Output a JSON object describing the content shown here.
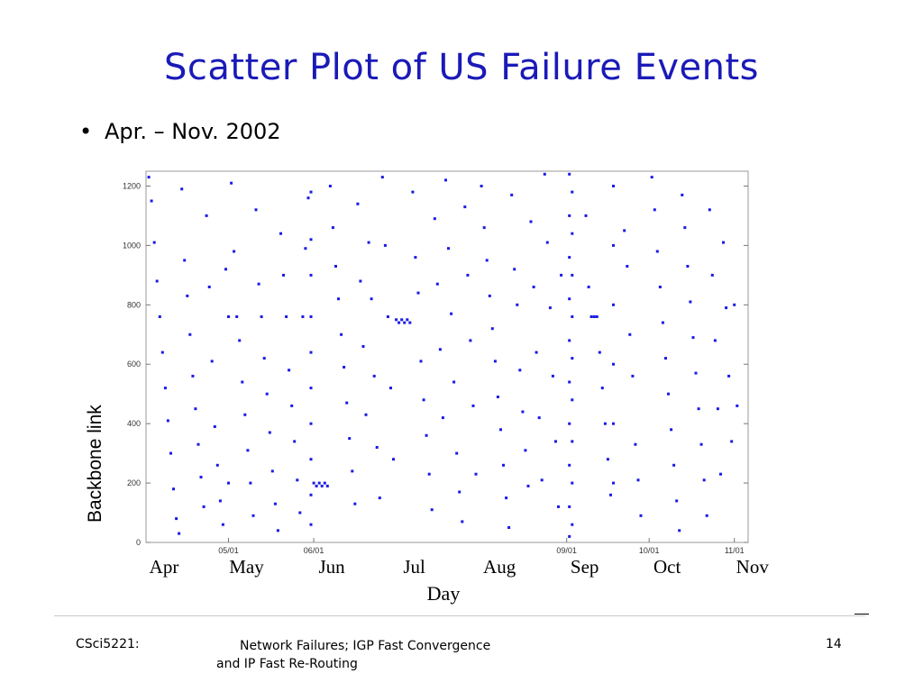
{
  "slide": {
    "title": "Scatter Plot of US Failure Events",
    "bullet_symbol": "•",
    "bullet_text": "Apr. – Nov. 2002"
  },
  "footer": {
    "left": "CSci5221:",
    "center_line1": "Network Failures; IGP Fast Convergence",
    "center_line2": "and IP Fast Re-Routing",
    "page_number": "14"
  },
  "chart_data": {
    "type": "scatter",
    "title": "",
    "xlabel": "Day",
    "ylabel": "Backbone link",
    "ylim": [
      0,
      1250
    ],
    "yticks": [
      0,
      200,
      400,
      600,
      800,
      1000,
      1200
    ],
    "ytick_labels": [
      "0",
      "200",
      "400",
      "600",
      "800",
      "1000",
      "1200"
    ],
    "xlim": [
      "2002-04-01",
      "2002-11-06"
    ],
    "date_ticks": [
      {
        "date": "2002-05-01",
        "label": "05/01"
      },
      {
        "date": "2002-06-01",
        "label": "06/01"
      },
      {
        "date": "2002-09-01",
        "label": "09/01"
      },
      {
        "date": "2002-10-01",
        "label": "10/01"
      },
      {
        "date": "2002-11-01",
        "label": "11/01"
      }
    ],
    "month_labels": [
      "Apr",
      "May",
      "Jun",
      "Jul",
      "Aug",
      "Sep",
      "Oct",
      "Nov"
    ],
    "point_color": "#1a1ae6",
    "grid": false,
    "legend": "none",
    "series": [
      {
        "points": [
          [
            "2002-04-02",
            1230
          ],
          [
            "2002-04-03",
            1150
          ],
          [
            "2002-04-04",
            1010
          ],
          [
            "2002-04-05",
            880
          ],
          [
            "2002-04-06",
            760
          ],
          [
            "2002-04-07",
            640
          ],
          [
            "2002-04-08",
            520
          ],
          [
            "2002-04-09",
            410
          ],
          [
            "2002-04-10",
            300
          ],
          [
            "2002-04-11",
            180
          ],
          [
            "2002-04-12",
            80
          ],
          [
            "2002-04-13",
            30
          ],
          [
            "2002-04-14",
            1190
          ],
          [
            "2002-04-15",
            950
          ],
          [
            "2002-04-16",
            830
          ],
          [
            "2002-04-17",
            700
          ],
          [
            "2002-04-18",
            560
          ],
          [
            "2002-04-19",
            450
          ],
          [
            "2002-04-20",
            330
          ],
          [
            "2002-04-21",
            220
          ],
          [
            "2002-04-22",
            120
          ],
          [
            "2002-04-23",
            1100
          ],
          [
            "2002-04-24",
            860
          ],
          [
            "2002-04-25",
            610
          ],
          [
            "2002-04-26",
            390
          ],
          [
            "2002-04-27",
            260
          ],
          [
            "2002-04-28",
            140
          ],
          [
            "2002-04-29",
            60
          ],
          [
            "2002-04-30",
            920
          ],
          [
            "2002-05-01",
            760
          ],
          [
            "2002-05-01",
            200
          ],
          [
            "2002-05-02",
            1210
          ],
          [
            "2002-05-03",
            980
          ],
          [
            "2002-05-04",
            760
          ],
          [
            "2002-05-05",
            680
          ],
          [
            "2002-05-06",
            540
          ],
          [
            "2002-05-07",
            430
          ],
          [
            "2002-05-08",
            310
          ],
          [
            "2002-05-09",
            200
          ],
          [
            "2002-05-10",
            90
          ],
          [
            "2002-05-11",
            1120
          ],
          [
            "2002-05-12",
            870
          ],
          [
            "2002-05-13",
            760
          ],
          [
            "2002-05-14",
            620
          ],
          [
            "2002-05-15",
            500
          ],
          [
            "2002-05-16",
            370
          ],
          [
            "2002-05-17",
            240
          ],
          [
            "2002-05-18",
            130
          ],
          [
            "2002-05-19",
            40
          ],
          [
            "2002-05-20",
            1040
          ],
          [
            "2002-05-21",
            900
          ],
          [
            "2002-05-22",
            760
          ],
          [
            "2002-05-23",
            580
          ],
          [
            "2002-05-24",
            460
          ],
          [
            "2002-05-25",
            340
          ],
          [
            "2002-05-26",
            210
          ],
          [
            "2002-05-27",
            100
          ],
          [
            "2002-05-28",
            760
          ],
          [
            "2002-05-29",
            990
          ],
          [
            "2002-05-30",
            1160
          ],
          [
            "2002-05-31",
            1180
          ],
          [
            "2002-05-31",
            1020
          ],
          [
            "2002-05-31",
            900
          ],
          [
            "2002-05-31",
            760
          ],
          [
            "2002-05-31",
            640
          ],
          [
            "2002-05-31",
            520
          ],
          [
            "2002-05-31",
            400
          ],
          [
            "2002-05-31",
            280
          ],
          [
            "2002-05-31",
            160
          ],
          [
            "2002-05-31",
            60
          ],
          [
            "2002-06-01",
            200
          ],
          [
            "2002-06-02",
            190
          ],
          [
            "2002-06-03",
            200
          ],
          [
            "2002-06-04",
            190
          ],
          [
            "2002-06-05",
            200
          ],
          [
            "2002-06-06",
            190
          ],
          [
            "2002-06-07",
            1200
          ],
          [
            "2002-06-08",
            1060
          ],
          [
            "2002-06-09",
            930
          ],
          [
            "2002-06-10",
            820
          ],
          [
            "2002-06-11",
            700
          ],
          [
            "2002-06-12",
            590
          ],
          [
            "2002-06-13",
            470
          ],
          [
            "2002-06-14",
            350
          ],
          [
            "2002-06-15",
            240
          ],
          [
            "2002-06-16",
            130
          ],
          [
            "2002-06-17",
            1140
          ],
          [
            "2002-06-18",
            880
          ],
          [
            "2002-06-19",
            660
          ],
          [
            "2002-06-20",
            430
          ],
          [
            "2002-06-21",
            1010
          ],
          [
            "2002-06-22",
            820
          ],
          [
            "2002-06-23",
            560
          ],
          [
            "2002-06-24",
            320
          ],
          [
            "2002-06-25",
            150
          ],
          [
            "2002-06-26",
            1230
          ],
          [
            "2002-06-27",
            1000
          ],
          [
            "2002-06-28",
            760
          ],
          [
            "2002-06-29",
            520
          ],
          [
            "2002-06-30",
            280
          ],
          [
            "2002-07-01",
            750
          ],
          [
            "2002-07-02",
            740
          ],
          [
            "2002-07-03",
            750
          ],
          [
            "2002-07-04",
            740
          ],
          [
            "2002-07-05",
            750
          ],
          [
            "2002-07-06",
            740
          ],
          [
            "2002-07-07",
            1180
          ],
          [
            "2002-07-08",
            960
          ],
          [
            "2002-07-09",
            840
          ],
          [
            "2002-07-10",
            610
          ],
          [
            "2002-07-11",
            480
          ],
          [
            "2002-07-12",
            360
          ],
          [
            "2002-07-13",
            230
          ],
          [
            "2002-07-14",
            110
          ],
          [
            "2002-07-15",
            1090
          ],
          [
            "2002-07-16",
            870
          ],
          [
            "2002-07-17",
            650
          ],
          [
            "2002-07-18",
            420
          ],
          [
            "2002-07-19",
            1220
          ],
          [
            "2002-07-20",
            990
          ],
          [
            "2002-07-21",
            770
          ],
          [
            "2002-07-22",
            540
          ],
          [
            "2002-07-23",
            300
          ],
          [
            "2002-07-24",
            170
          ],
          [
            "2002-07-25",
            70
          ],
          [
            "2002-07-26",
            1130
          ],
          [
            "2002-07-27",
            900
          ],
          [
            "2002-07-28",
            680
          ],
          [
            "2002-07-29",
            460
          ],
          [
            "2002-07-30",
            230
          ],
          [
            "2002-08-01",
            1200
          ],
          [
            "2002-08-02",
            1060
          ],
          [
            "2002-08-03",
            950
          ],
          [
            "2002-08-04",
            830
          ],
          [
            "2002-08-05",
            720
          ],
          [
            "2002-08-06",
            610
          ],
          [
            "2002-08-07",
            490
          ],
          [
            "2002-08-08",
            380
          ],
          [
            "2002-08-09",
            260
          ],
          [
            "2002-08-10",
            150
          ],
          [
            "2002-08-11",
            50
          ],
          [
            "2002-08-12",
            1170
          ],
          [
            "2002-08-13",
            920
          ],
          [
            "2002-08-14",
            800
          ],
          [
            "2002-08-15",
            580
          ],
          [
            "2002-08-16",
            440
          ],
          [
            "2002-08-17",
            310
          ],
          [
            "2002-08-18",
            190
          ],
          [
            "2002-08-19",
            1080
          ],
          [
            "2002-08-20",
            860
          ],
          [
            "2002-08-21",
            640
          ],
          [
            "2002-08-22",
            420
          ],
          [
            "2002-08-23",
            210
          ],
          [
            "2002-08-24",
            1240
          ],
          [
            "2002-08-25",
            1010
          ],
          [
            "2002-08-26",
            790
          ],
          [
            "2002-08-27",
            560
          ],
          [
            "2002-08-28",
            340
          ],
          [
            "2002-08-29",
            120
          ],
          [
            "2002-08-30",
            900
          ],
          [
            "2002-09-02",
            1240
          ],
          [
            "2002-09-02",
            1100
          ],
          [
            "2002-09-02",
            960
          ],
          [
            "2002-09-02",
            820
          ],
          [
            "2002-09-02",
            680
          ],
          [
            "2002-09-02",
            540
          ],
          [
            "2002-09-02",
            400
          ],
          [
            "2002-09-02",
            260
          ],
          [
            "2002-09-02",
            120
          ],
          [
            "2002-09-02",
            20
          ],
          [
            "2002-09-03",
            1180
          ],
          [
            "2002-09-03",
            1040
          ],
          [
            "2002-09-03",
            900
          ],
          [
            "2002-09-03",
            760
          ],
          [
            "2002-09-03",
            620
          ],
          [
            "2002-09-03",
            480
          ],
          [
            "2002-09-03",
            340
          ],
          [
            "2002-09-03",
            200
          ],
          [
            "2002-09-03",
            60
          ],
          [
            "2002-09-08",
            1100
          ],
          [
            "2002-09-09",
            860
          ],
          [
            "2002-09-10",
            760
          ],
          [
            "2002-09-11",
            760
          ],
          [
            "2002-09-12",
            760
          ],
          [
            "2002-09-13",
            640
          ],
          [
            "2002-09-14",
            520
          ],
          [
            "2002-09-15",
            400
          ],
          [
            "2002-09-16",
            280
          ],
          [
            "2002-09-17",
            160
          ],
          [
            "2002-09-18",
            1200
          ],
          [
            "2002-09-18",
            1000
          ],
          [
            "2002-09-18",
            800
          ],
          [
            "2002-09-18",
            600
          ],
          [
            "2002-09-18",
            400
          ],
          [
            "2002-09-18",
            200
          ],
          [
            "2002-09-22",
            1050
          ],
          [
            "2002-09-23",
            930
          ],
          [
            "2002-09-24",
            700
          ],
          [
            "2002-09-25",
            560
          ],
          [
            "2002-09-26",
            330
          ],
          [
            "2002-09-27",
            210
          ],
          [
            "2002-09-28",
            90
          ],
          [
            "2002-10-02",
            1230
          ],
          [
            "2002-10-03",
            1120
          ],
          [
            "2002-10-04",
            980
          ],
          [
            "2002-10-05",
            860
          ],
          [
            "2002-10-06",
            740
          ],
          [
            "2002-10-07",
            620
          ],
          [
            "2002-10-08",
            500
          ],
          [
            "2002-10-09",
            380
          ],
          [
            "2002-10-10",
            260
          ],
          [
            "2002-10-11",
            140
          ],
          [
            "2002-10-12",
            40
          ],
          [
            "2002-10-13",
            1170
          ],
          [
            "2002-10-14",
            1060
          ],
          [
            "2002-10-15",
            930
          ],
          [
            "2002-10-16",
            810
          ],
          [
            "2002-10-17",
            690
          ],
          [
            "2002-10-18",
            570
          ],
          [
            "2002-10-19",
            450
          ],
          [
            "2002-10-20",
            330
          ],
          [
            "2002-10-21",
            210
          ],
          [
            "2002-10-22",
            90
          ],
          [
            "2002-10-23",
            1120
          ],
          [
            "2002-10-24",
            900
          ],
          [
            "2002-10-25",
            680
          ],
          [
            "2002-10-26",
            450
          ],
          [
            "2002-10-27",
            230
          ],
          [
            "2002-10-28",
            1010
          ],
          [
            "2002-10-29",
            790
          ],
          [
            "2002-10-30",
            560
          ],
          [
            "2002-10-31",
            340
          ],
          [
            "2002-11-01",
            800
          ],
          [
            "2002-11-02",
            460
          ]
        ]
      }
    ]
  }
}
